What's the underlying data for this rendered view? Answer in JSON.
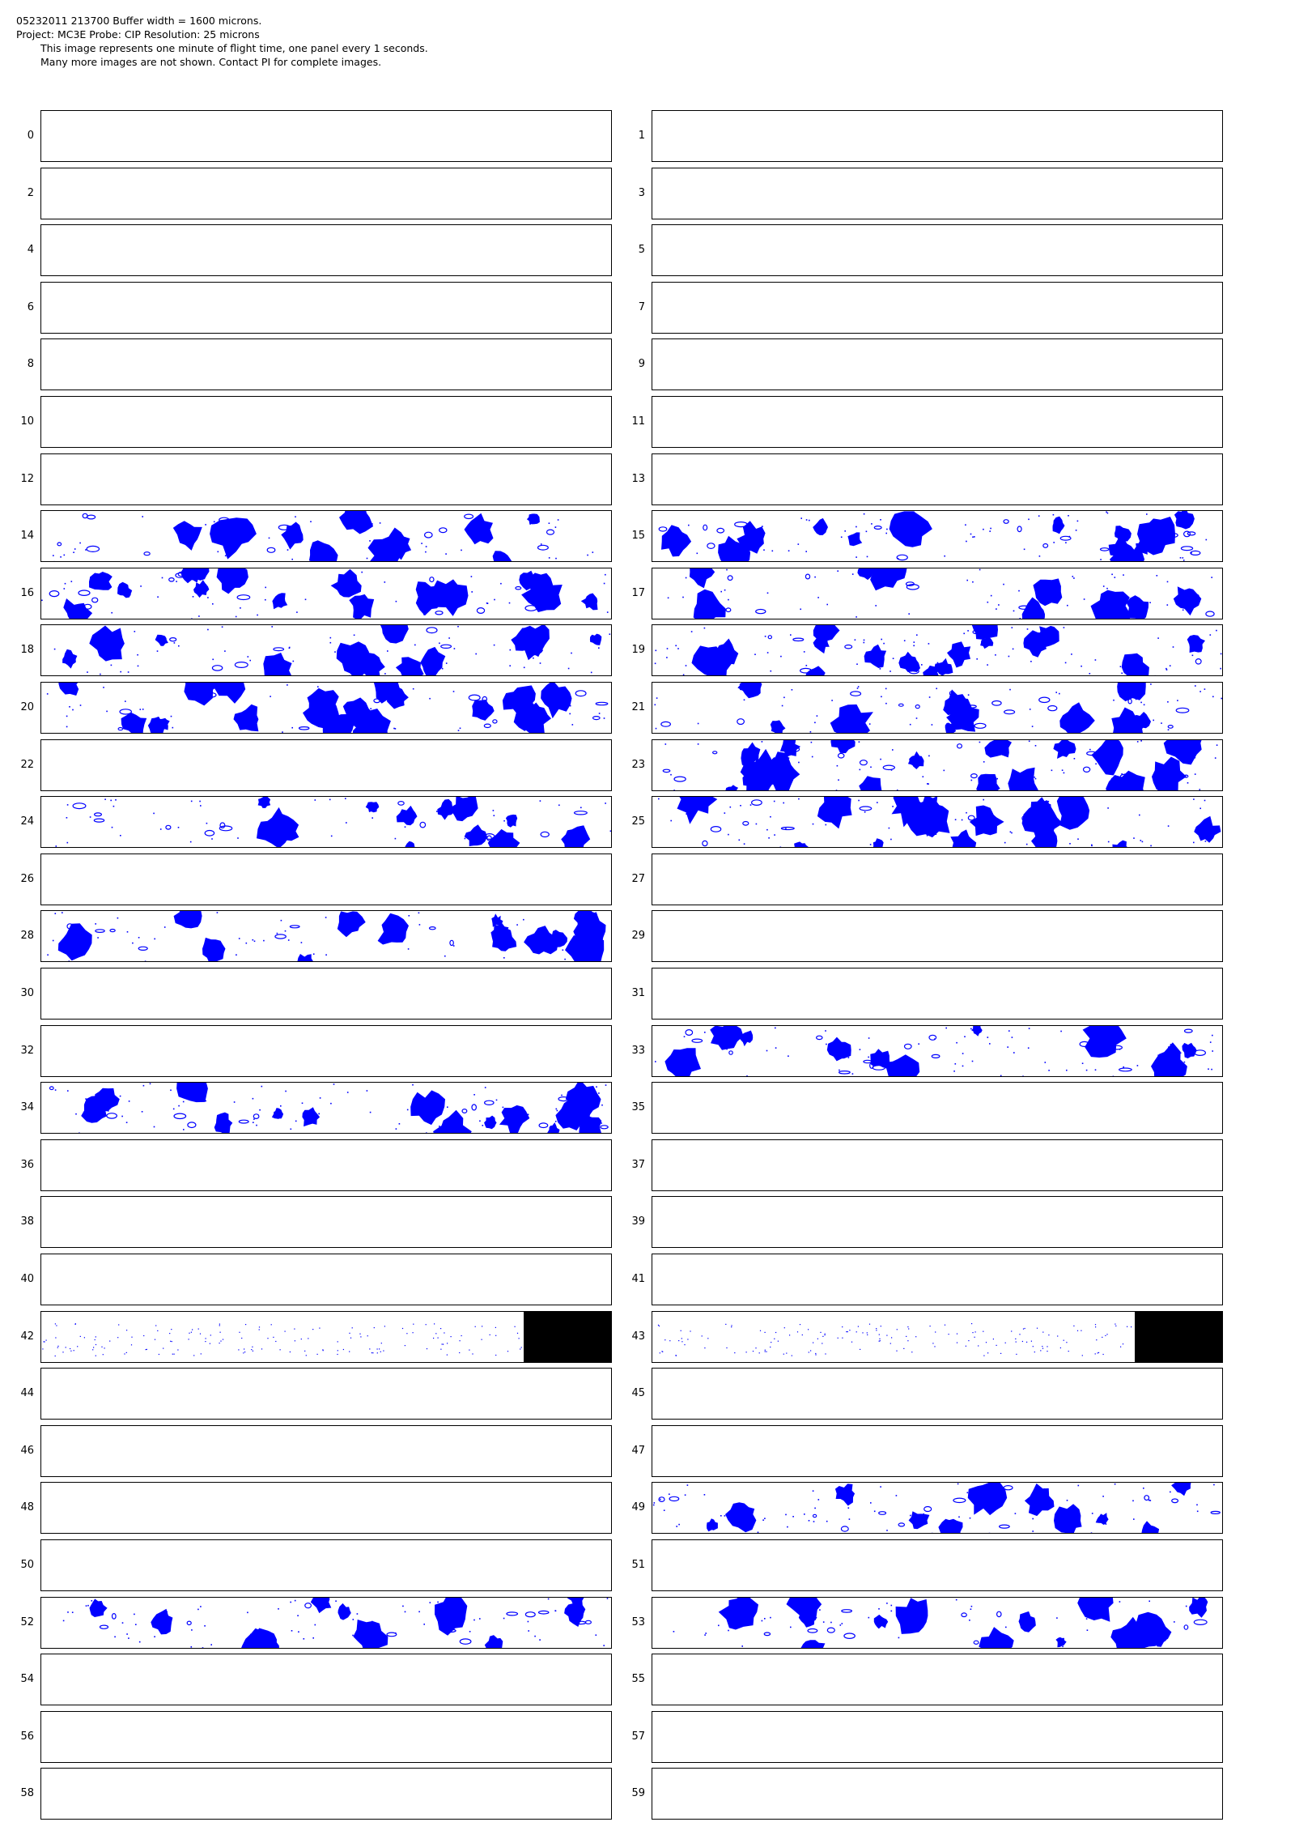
{
  "header": {
    "line1": "05232011 213700  Buffer width = 1600 microns.",
    "line2": "Project: MC3E  Probe: CIP   Resolution: 25 microns",
    "line3": "This image represents one minute of flight time, one panel every 1 seconds.",
    "line4": "Many more images are not shown.  Contact PI for complete images."
  },
  "colors": {
    "particle": "#0000ff",
    "border": "#000000",
    "blocked": "#000000"
  },
  "panels": {
    "labels": [
      "0",
      "1",
      "2",
      "3",
      "4",
      "5",
      "6",
      "7",
      "8",
      "9",
      "10",
      "11",
      "12",
      "13",
      "14",
      "15",
      "16",
      "17",
      "18",
      "19",
      "20",
      "21",
      "22",
      "23",
      "24",
      "25",
      "26",
      "27",
      "28",
      "29",
      "30",
      "31",
      "32",
      "33",
      "34",
      "35",
      "36",
      "37",
      "38",
      "39",
      "40",
      "41",
      "42",
      "43",
      "44",
      "45",
      "46",
      "47",
      "48",
      "49",
      "50",
      "51",
      "52",
      "53",
      "54",
      "55",
      "56",
      "57",
      "58",
      "59"
    ],
    "with_particles": [
      14,
      15,
      16,
      17,
      18,
      19,
      20,
      21,
      23,
      24,
      25,
      28,
      33,
      34,
      49,
      52,
      53
    ],
    "sparse_dots": [
      42,
      43
    ],
    "partially_blocked": [
      42,
      43
    ]
  }
}
